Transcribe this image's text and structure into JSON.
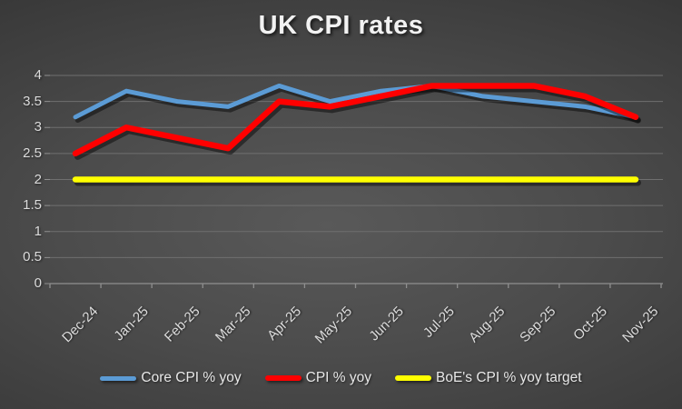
{
  "chart_data": {
    "type": "line",
    "title": "UK CPI rates",
    "categories": [
      "Dec-24",
      "Jan-25",
      "Feb-25",
      "Mar-25",
      "Apr-25",
      "May-25",
      "Jun-25",
      "Jul-25",
      "Aug-25",
      "Sep-25",
      "Oct-25",
      "Nov-25"
    ],
    "series": [
      {
        "name": "Core CPI % yoy",
        "color": "#5B9BD5",
        "line_width": 5,
        "values": [
          3.2,
          3.7,
          3.5,
          3.4,
          3.8,
          3.5,
          3.7,
          3.8,
          3.6,
          3.5,
          3.4,
          3.2
        ]
      },
      {
        "name": "CPI % yoy",
        "color": "#FF0000",
        "line_width": 6.5,
        "values": [
          2.5,
          3.0,
          2.8,
          2.6,
          3.5,
          3.4,
          3.6,
          3.8,
          3.8,
          3.8,
          3.6,
          3.2
        ]
      },
      {
        "name": "BoE's CPI % yoy target",
        "color": "#FFFF00",
        "line_width": 6.5,
        "values": [
          2,
          2,
          2,
          2,
          2,
          2,
          2,
          2,
          2,
          2,
          2,
          2
        ]
      }
    ],
    "y_ticks": [
      4,
      3.5,
      3,
      2.5,
      2,
      1.5,
      1,
      0.5,
      0
    ],
    "ylim": [
      0,
      4
    ],
    "grid": true,
    "legend_position": "bottom"
  },
  "colors": {
    "gridline": "#6f6f6f",
    "axis_line": "#8f8f8f",
    "tick_label": "#dcdcdc",
    "title": "#f2f2f2",
    "legend_label": "#e8e8e8",
    "line_shadow": "rgba(0,0,0,0.45)"
  }
}
